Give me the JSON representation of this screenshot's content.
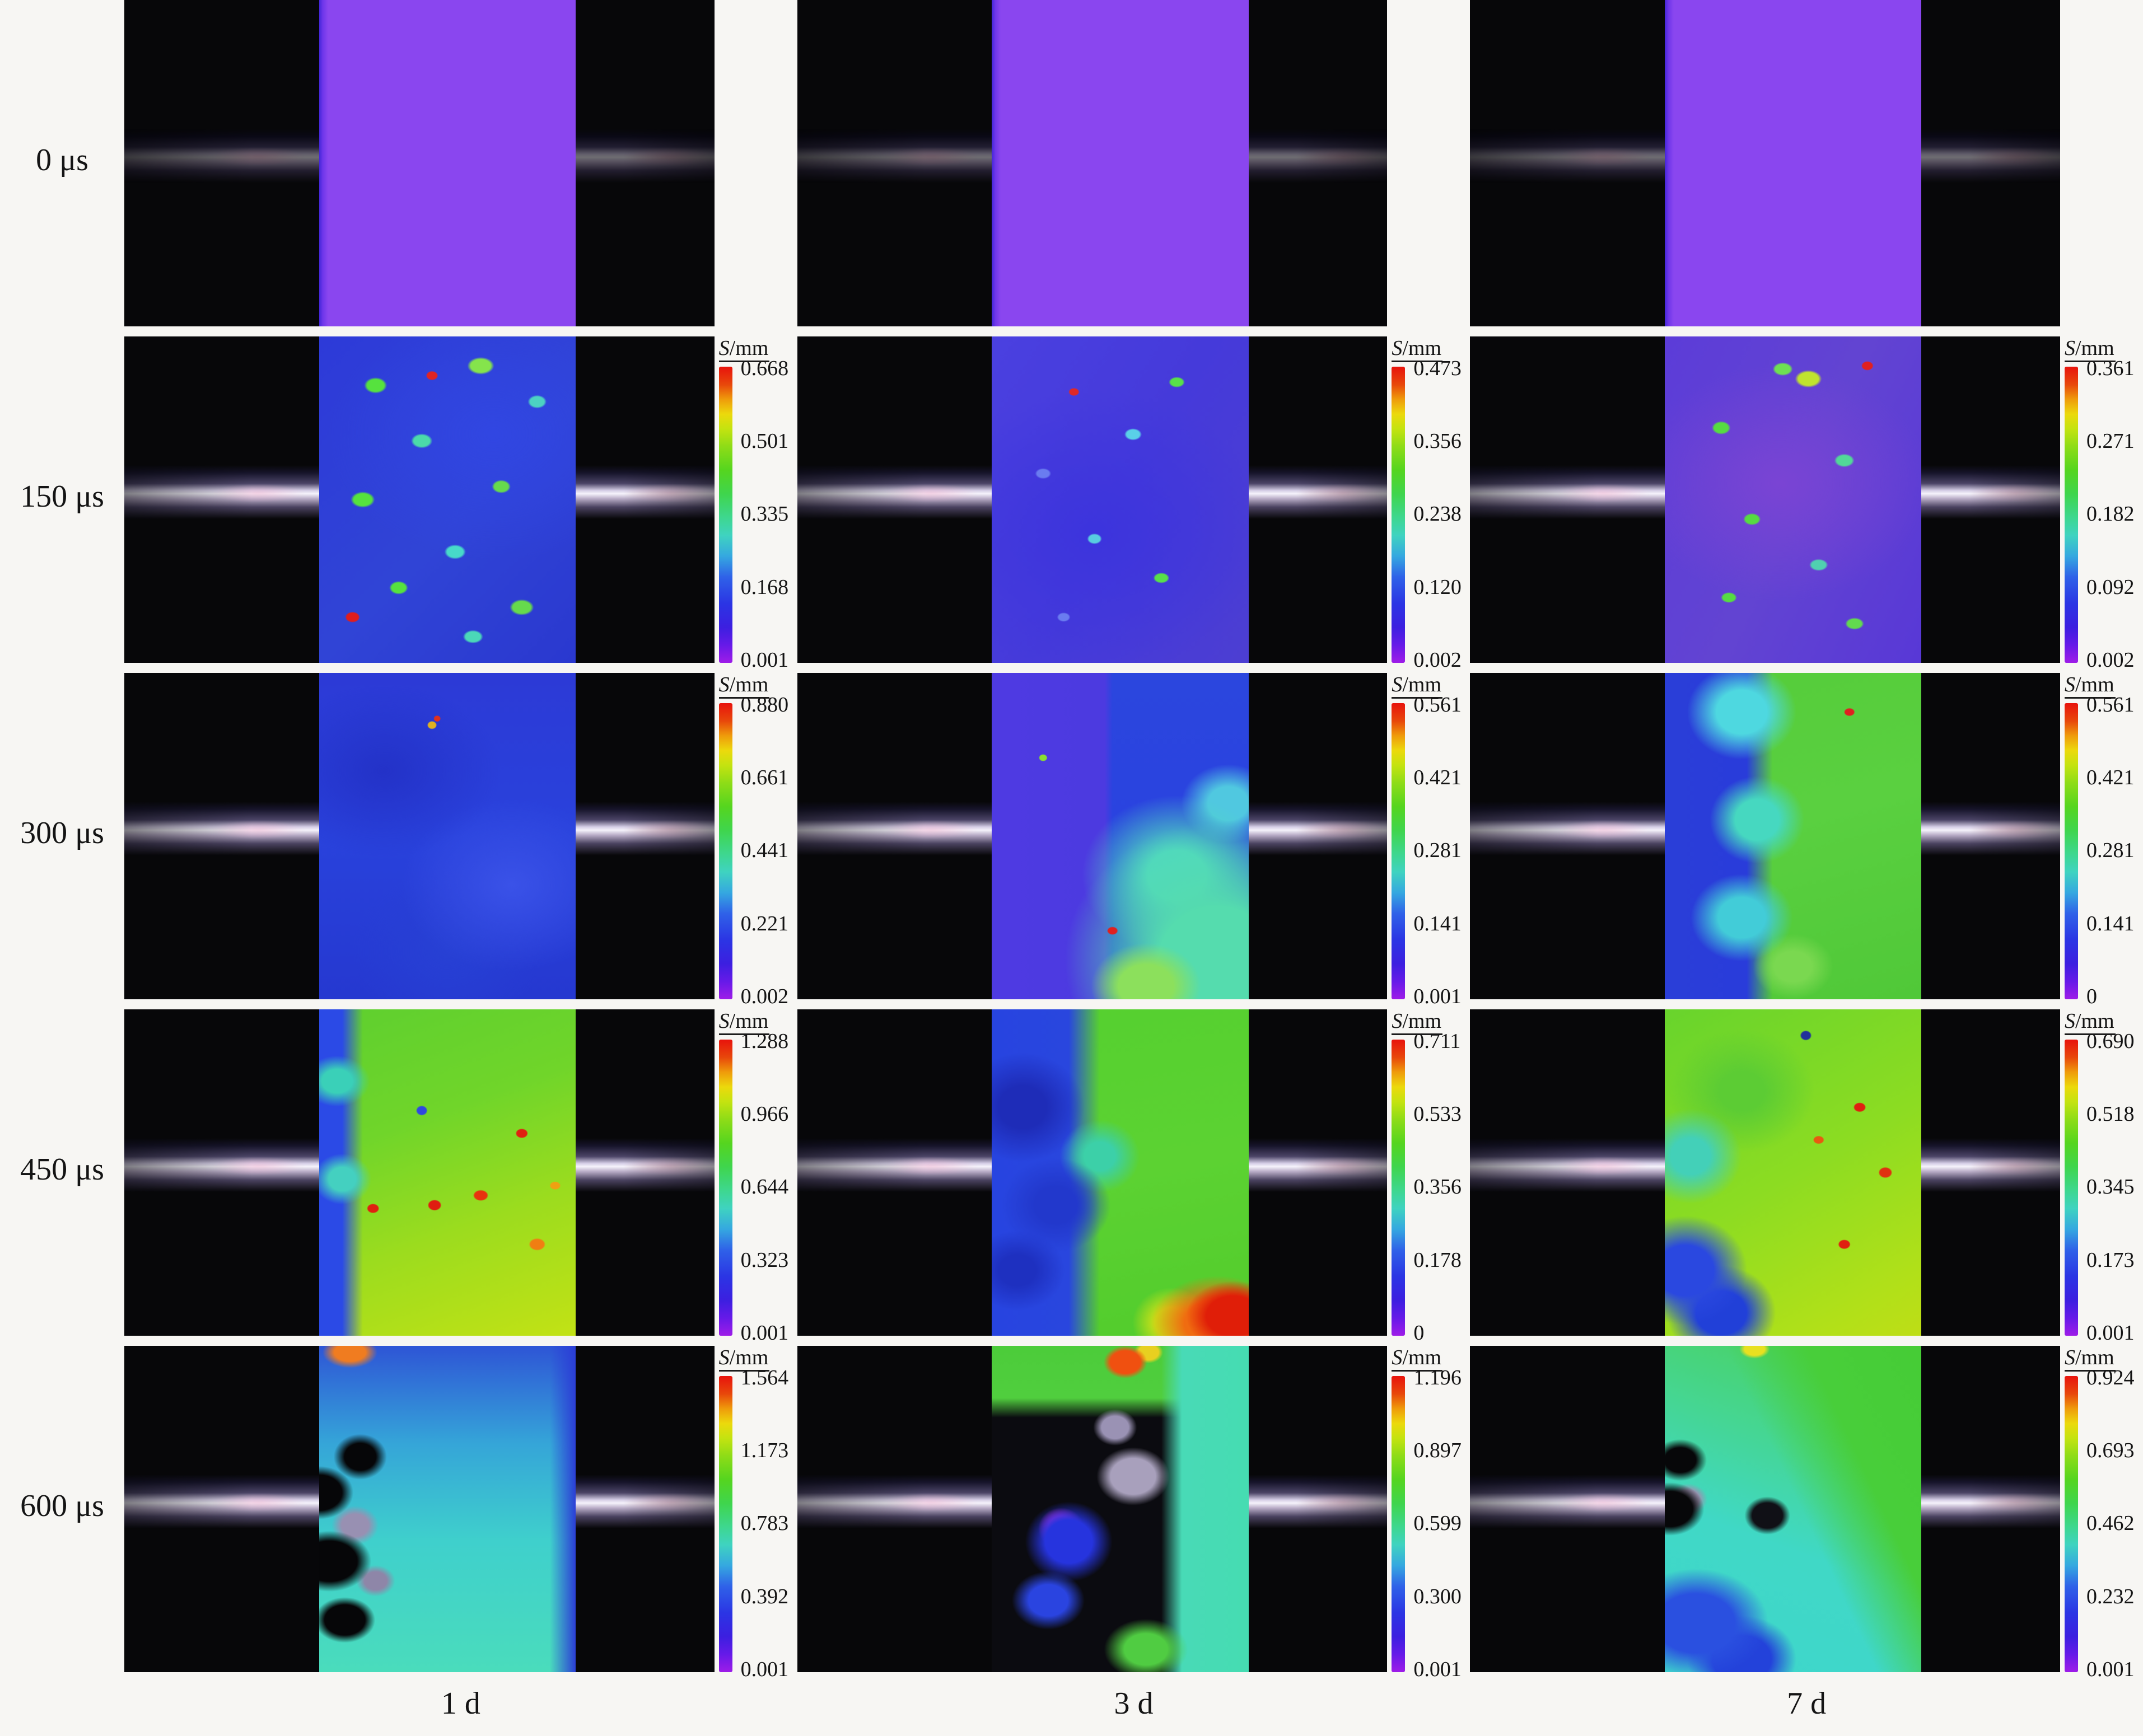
{
  "figure": {
    "row_labels": [
      "0 μs",
      "150 μs",
      "300 μs",
      "450 μs",
      "600 μs"
    ],
    "column_labels": [
      "1 d",
      "3 d",
      "7 d"
    ],
    "scale_symbol": "S",
    "scale_unit": "/mm"
  },
  "colorbars": {
    "t150_1d": [
      "0.668",
      "0.501",
      "0.335",
      "0.168",
      "0.001"
    ],
    "t150_3d": [
      "0.473",
      "0.356",
      "0.238",
      "0.120",
      "0.002"
    ],
    "t150_7d": [
      "0.361",
      "0.271",
      "0.182",
      "0.092",
      "0.002"
    ],
    "t300_1d": [
      "0.880",
      "0.661",
      "0.441",
      "0.221",
      "0.002"
    ],
    "t300_3d": [
      "0.561",
      "0.421",
      "0.281",
      "0.141",
      "0.001"
    ],
    "t300_7d": [
      "0.561",
      "0.421",
      "0.281",
      "0.141",
      "0"
    ],
    "t450_1d": [
      "1.288",
      "0.966",
      "0.644",
      "0.323",
      "0.001"
    ],
    "t450_3d": [
      "0.711",
      "0.533",
      "0.356",
      "0.178",
      "0"
    ],
    "t450_7d": [
      "0.690",
      "0.518",
      "0.345",
      "0.173",
      "0.001"
    ],
    "t600_1d": [
      "1.564",
      "1.173",
      "0.783",
      "0.392",
      "0.001"
    ],
    "t600_3d": [
      "1.196",
      "0.897",
      "0.599",
      "0.300",
      "0.001"
    ],
    "t600_7d": [
      "0.924",
      "0.693",
      "0.462",
      "0.232",
      "0.001"
    ]
  },
  "colors": {
    "css_vars": {
      "page-bg": "#f7f6f3",
      "frame-bg": "#070709",
      "specimen-purple": "#8a46ef"
    },
    "colorbar_top_to_bottom": [
      "#e8130c",
      "#ef9b0b",
      "#ecd90c",
      "#8edc17",
      "#3fd54d",
      "#3ed79f",
      "#35a8e0",
      "#2b35e4",
      "#3c1fe0",
      "#9e1ce8"
    ]
  }
}
